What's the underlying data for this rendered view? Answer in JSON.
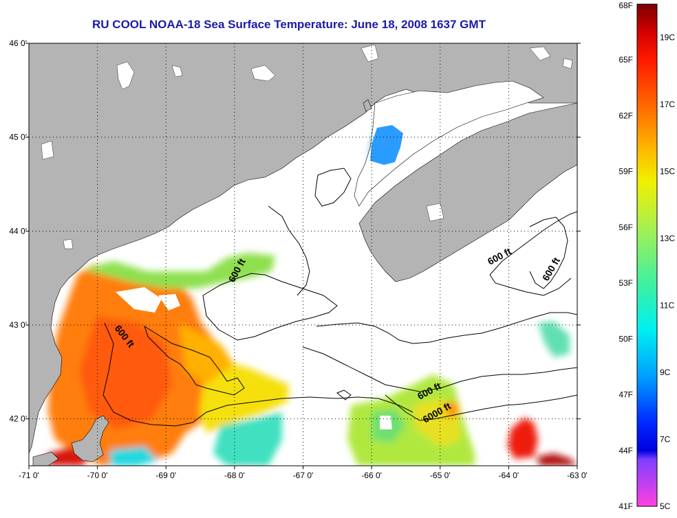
{
  "title": "RU COOL  NOAA-18  Sea Surface Temperature:  June 18, 2008 1637 GMT",
  "map": {
    "lat_range": [
      41.5,
      46.0
    ],
    "lon_range": [
      -71.0,
      -63.0
    ],
    "lat_ticks": [
      {
        "value": 46,
        "label": "46 0'"
      },
      {
        "value": 45,
        "label": "45 0'"
      },
      {
        "value": 44,
        "label": "44 0'"
      },
      {
        "value": 43,
        "label": "43 0'"
      },
      {
        "value": 42,
        "label": "42 0'"
      }
    ],
    "lon_ticks": [
      {
        "value": -71,
        "label": "-71 0'"
      },
      {
        "value": -70,
        "label": "-70 0'"
      },
      {
        "value": -69,
        "label": "-69 0'"
      },
      {
        "value": -68,
        "label": "-68 0'"
      },
      {
        "value": -67,
        "label": "-67 0'"
      },
      {
        "value": -66,
        "label": "-66 0'"
      },
      {
        "value": -65,
        "label": "-65 0'"
      },
      {
        "value": -64,
        "label": "-64 0'"
      },
      {
        "value": -63,
        "label": "-63 0'"
      }
    ],
    "contour_labels": [
      "600 ft",
      "600 ft",
      "600 ft",
      "600 ft",
      "6000 ft",
      "600 ft"
    ],
    "land_color": "#b4b4b4",
    "nodata_color": "#ffffff",
    "grid": "dotted"
  },
  "colorbar": {
    "fahrenheit_labels": [
      "68F",
      "65F",
      "62F",
      "59F",
      "56F",
      "53F",
      "50F",
      "47F",
      "44F",
      "41F"
    ],
    "celsius_labels": [
      "19C",
      "17C",
      "15C",
      "13C",
      "11C",
      "9C",
      "7C",
      "5C"
    ],
    "range_f": [
      41,
      68
    ],
    "stops": [
      {
        "f": 68,
        "color": "#7a0000"
      },
      {
        "f": 66.5,
        "color": "#d40000"
      },
      {
        "f": 65,
        "color": "#ff1a00"
      },
      {
        "f": 62,
        "color": "#ff7a00"
      },
      {
        "f": 60,
        "color": "#ffbe00"
      },
      {
        "f": 58.5,
        "color": "#f0f000"
      },
      {
        "f": 56,
        "color": "#a8f050"
      },
      {
        "f": 53,
        "color": "#40f0a0"
      },
      {
        "f": 50.5,
        "color": "#00f0f0"
      },
      {
        "f": 48,
        "color": "#00a0ff"
      },
      {
        "f": 45.5,
        "color": "#0028ff"
      },
      {
        "f": 44,
        "color": "#0000e0"
      },
      {
        "f": 43.5,
        "color": "#8040ff"
      },
      {
        "f": 41,
        "color": "#ff40e0"
      }
    ]
  }
}
